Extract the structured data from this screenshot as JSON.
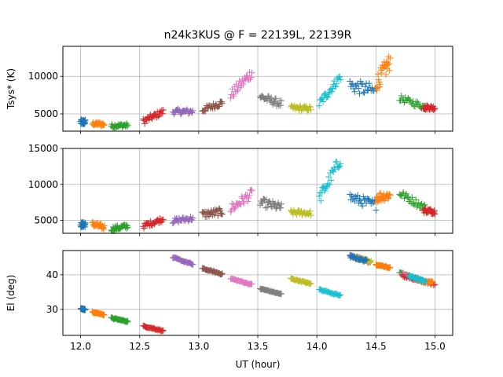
{
  "chart_data": {
    "type": "scatter",
    "title": "n24k3KUS @ F = 22139L, 22139R",
    "xlabel": "UT (hour)",
    "marker": "+",
    "xlim": [
      11.85,
      15.15
    ],
    "x_ticks": [
      12.0,
      12.5,
      13.0,
      13.5,
      14.0,
      14.5,
      15.0
    ],
    "x_tick_labels": [
      "12.0",
      "12.5",
      "13.0",
      "13.5",
      "14.0",
      "14.5",
      "15.0"
    ],
    "colors": [
      "#1f77b4",
      "#ff7f0e",
      "#2ca02c",
      "#d62728",
      "#9467bd",
      "#8c564b",
      "#e377c2",
      "#7f7f7f",
      "#bcbd22",
      "#17becf"
    ],
    "panels": [
      {
        "ylabel": "Tsys* (K)",
        "ylim": [
          2700,
          14000
        ],
        "y_ticks": [
          5000,
          10000
        ],
        "y_tick_labels": [
          "5000",
          "10000"
        ],
        "segments": [
          {
            "color": 0,
            "x0": 12.0,
            "x1": 12.04,
            "y0": 3900,
            "y1": 3900,
            "yj": 350
          },
          {
            "color": 1,
            "x0": 12.1,
            "x1": 12.2,
            "y0": 3700,
            "y1": 3600,
            "yj": 250
          },
          {
            "color": 2,
            "x0": 12.26,
            "x1": 12.4,
            "y0": 3400,
            "y1": 3500,
            "yj": 250
          },
          {
            "color": 3,
            "x0": 12.53,
            "x1": 12.7,
            "y0": 4000,
            "y1": 5300,
            "yj": 400
          },
          {
            "color": 4,
            "x0": 12.78,
            "x1": 12.95,
            "y0": 5300,
            "y1": 5300,
            "yj": 350
          },
          {
            "color": 5,
            "x0": 13.03,
            "x1": 13.2,
            "y0": 5500,
            "y1": 6500,
            "yj": 400
          },
          {
            "color": 6,
            "x0": 13.27,
            "x1": 13.45,
            "y0": 7500,
            "y1": 10500,
            "yj": 700
          },
          {
            "color": 7,
            "x0": 13.52,
            "x1": 13.7,
            "y0": 7300,
            "y1": 6300,
            "yj": 500
          },
          {
            "color": 8,
            "x0": 13.78,
            "x1": 13.95,
            "y0": 5800,
            "y1": 5700,
            "yj": 350
          },
          {
            "color": 9,
            "x0": 14.02,
            "x1": 14.2,
            "y0": 6300,
            "y1": 10000,
            "yj": 600
          },
          {
            "color": 0,
            "x0": 14.28,
            "x1": 14.5,
            "y0": 8800,
            "y1": 8000,
            "yj": 900
          },
          {
            "color": 1,
            "x0": 14.5,
            "x1": 14.62,
            "y0": 9000,
            "y1": 12000,
            "yj": 1200
          },
          {
            "color": 2,
            "x0": 14.7,
            "x1": 14.92,
            "y0": 7100,
            "y1": 5900,
            "yj": 400
          },
          {
            "color": 3,
            "x0": 14.9,
            "x1": 15.0,
            "y0": 5900,
            "y1": 5800,
            "yj": 300
          }
        ]
      },
      {
        "ylabel": "",
        "ylim": [
          3200,
          15000
        ],
        "y_ticks": [
          5000,
          10000,
          15000
        ],
        "y_tick_labels": [
          "5000",
          "10000",
          "15000"
        ],
        "segments": [
          {
            "color": 0,
            "x0": 12.0,
            "x1": 12.04,
            "y0": 4400,
            "y1": 4400,
            "yj": 350
          },
          {
            "color": 1,
            "x0": 12.1,
            "x1": 12.2,
            "y0": 4500,
            "y1": 4000,
            "yj": 350
          },
          {
            "color": 2,
            "x0": 12.26,
            "x1": 12.4,
            "y0": 3800,
            "y1": 4200,
            "yj": 350
          },
          {
            "color": 3,
            "x0": 12.53,
            "x1": 12.7,
            "y0": 4200,
            "y1": 5200,
            "yj": 350
          },
          {
            "color": 4,
            "x0": 12.78,
            "x1": 12.95,
            "y0": 4900,
            "y1": 5300,
            "yj": 350
          },
          {
            "color": 5,
            "x0": 13.03,
            "x1": 13.2,
            "y0": 5800,
            "y1": 6200,
            "yj": 500
          },
          {
            "color": 6,
            "x0": 13.27,
            "x1": 13.45,
            "y0": 6600,
            "y1": 8700,
            "yj": 700
          },
          {
            "color": 7,
            "x0": 13.52,
            "x1": 13.7,
            "y0": 7500,
            "y1": 6800,
            "yj": 600
          },
          {
            "color": 8,
            "x0": 13.78,
            "x1": 13.95,
            "y0": 6100,
            "y1": 6000,
            "yj": 350
          },
          {
            "color": 9,
            "x0": 14.02,
            "x1": 14.2,
            "y0": 8000,
            "y1": 13500,
            "yj": 900
          },
          {
            "color": 0,
            "x0": 14.28,
            "x1": 14.5,
            "y0": 8200,
            "y1": 7100,
            "yj": 700
          },
          {
            "color": 1,
            "x0": 14.5,
            "x1": 14.62,
            "y0": 8200,
            "y1": 8500,
            "yj": 700
          },
          {
            "color": 2,
            "x0": 14.7,
            "x1": 14.92,
            "y0": 8800,
            "y1": 6700,
            "yj": 500
          },
          {
            "color": 3,
            "x0": 14.9,
            "x1": 15.0,
            "y0": 6400,
            "y1": 6200,
            "yj": 350
          }
        ]
      },
      {
        "ylabel": "El (deg)",
        "ylim": [
          22.5,
          47
        ],
        "y_ticks": [
          30,
          40
        ],
        "y_tick_labels": [
          "30",
          "40"
        ],
        "segments": [
          {
            "color": 0,
            "x0": 12.0,
            "x1": 12.04,
            "y0": 30.3,
            "y1": 29.9,
            "yj": 0.2
          },
          {
            "color": 1,
            "x0": 12.1,
            "x1": 12.2,
            "y0": 29.2,
            "y1": 28.5,
            "yj": 0.2
          },
          {
            "color": 2,
            "x0": 12.26,
            "x1": 12.4,
            "y0": 27.5,
            "y1": 26.5,
            "yj": 0.2
          },
          {
            "color": 3,
            "x0": 12.53,
            "x1": 12.7,
            "y0": 25.2,
            "y1": 23.8,
            "yj": 0.2
          },
          {
            "color": 4,
            "x0": 12.78,
            "x1": 12.95,
            "y0": 45.0,
            "y1": 43.0,
            "yj": 0.2
          },
          {
            "color": 5,
            "x0": 13.03,
            "x1": 13.2,
            "y0": 41.8,
            "y1": 40.2,
            "yj": 0.2
          },
          {
            "color": 6,
            "x0": 13.27,
            "x1": 13.45,
            "y0": 38.9,
            "y1": 37.2,
            "yj": 0.2
          },
          {
            "color": 7,
            "x0": 13.52,
            "x1": 13.7,
            "y0": 36.0,
            "y1": 34.4,
            "yj": 0.2
          },
          {
            "color": 8,
            "x0": 13.78,
            "x1": 13.95,
            "y0": 38.9,
            "y1": 37.4,
            "yj": 0.2
          },
          {
            "color": 9,
            "x0": 14.02,
            "x1": 14.2,
            "y0": 35.8,
            "y1": 34.0,
            "yj": 0.2
          },
          {
            "color": 6,
            "x0": 14.28,
            "x1": 14.45,
            "y0": 45.6,
            "y1": 43.6,
            "yj": 0.4
          },
          {
            "color": 8,
            "x0": 14.32,
            "x1": 14.46,
            "y0": 45.0,
            "y1": 43.8,
            "yj": 0.4
          },
          {
            "color": 0,
            "x0": 14.28,
            "x1": 14.42,
            "y0": 45.3,
            "y1": 44.0,
            "yj": 0.4
          },
          {
            "color": 1,
            "x0": 14.5,
            "x1": 14.62,
            "y0": 43.0,
            "y1": 42.0,
            "yj": 0.2
          },
          {
            "color": 2,
            "x0": 14.7,
            "x1": 14.9,
            "y0": 40.8,
            "y1": 38.0,
            "yj": 0.3
          },
          {
            "color": 6,
            "x0": 14.72,
            "x1": 14.88,
            "y0": 40.2,
            "y1": 38.2,
            "yj": 0.3
          },
          {
            "color": 3,
            "x0": 14.72,
            "x1": 15.0,
            "y0": 39.8,
            "y1": 37.2,
            "yj": 0.3
          },
          {
            "color": 1,
            "x0": 14.85,
            "x1": 14.98,
            "y0": 38.6,
            "y1": 37.8,
            "yj": 0.3
          },
          {
            "color": 9,
            "x0": 14.78,
            "x1": 14.92,
            "y0": 39.6,
            "y1": 38.0,
            "yj": 0.3
          }
        ]
      }
    ]
  }
}
